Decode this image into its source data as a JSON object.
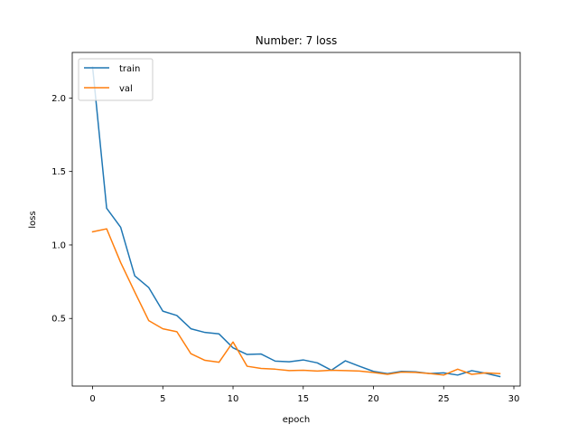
{
  "chart_data": {
    "type": "line",
    "title": "Number: 7 loss",
    "xlabel": "epoch",
    "ylabel": "loss",
    "xlim": [
      -1.45,
      30.45
    ],
    "ylim": [
      0.04,
      2.31
    ],
    "xticks": [
      0,
      5,
      10,
      15,
      20,
      25,
      30
    ],
    "xtick_labels": [
      "0",
      "5",
      "10",
      "15",
      "20",
      "25",
      "30"
    ],
    "yticks": [
      0.5,
      1.0,
      1.5,
      2.0
    ],
    "ytick_labels": [
      "0.5",
      "1.0",
      "1.5",
      "2.0"
    ],
    "grid": false,
    "legend_position": "upper-left",
    "x": [
      0,
      1,
      2,
      3,
      4,
      5,
      6,
      7,
      8,
      9,
      10,
      11,
      12,
      13,
      14,
      15,
      16,
      17,
      18,
      19,
      20,
      21,
      22,
      23,
      24,
      25,
      26,
      27,
      28,
      29
    ],
    "series": [
      {
        "name": "train",
        "color": "#1f77b4",
        "values": [
          2.21,
          1.25,
          1.12,
          0.79,
          0.71,
          0.55,
          0.52,
          0.43,
          0.405,
          0.395,
          0.3,
          0.255,
          0.258,
          0.21,
          0.205,
          0.218,
          0.198,
          0.148,
          0.212,
          0.175,
          0.14,
          0.125,
          0.14,
          0.137,
          0.125,
          0.13,
          0.115,
          0.145,
          0.127,
          0.105
        ]
      },
      {
        "name": "val",
        "color": "#ff7f0e",
        "values": [
          1.09,
          1.11,
          0.88,
          0.68,
          0.485,
          0.43,
          0.41,
          0.26,
          0.215,
          0.202,
          0.34,
          0.175,
          0.16,
          0.155,
          0.145,
          0.148,
          0.142,
          0.148,
          0.145,
          0.142,
          0.132,
          0.12,
          0.135,
          0.133,
          0.125,
          0.115,
          0.155,
          0.12,
          0.13,
          0.125
        ]
      }
    ]
  }
}
